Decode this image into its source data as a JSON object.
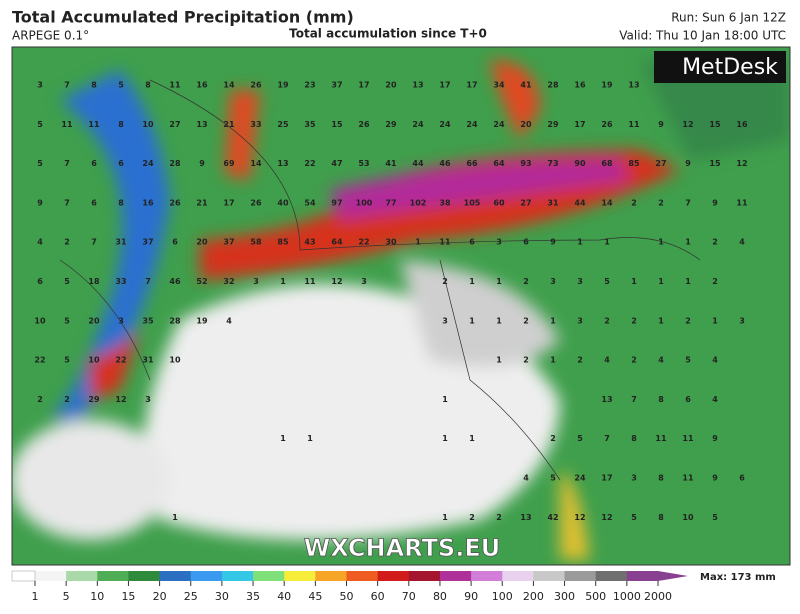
{
  "header": {
    "title": "Total Accumulated Precipitation (mm)",
    "model": "ARPEGE 0.1°",
    "subtitle": "Total accumulation since T+0",
    "run": "Run: Sun 6 Jan 12Z",
    "valid": "Valid: Thu 10 Jan 18:00 UTC"
  },
  "logo": "MetDesk",
  "watermark": "WXCHARTS.EU",
  "map_labels": [
    [
      3,
      7,
      8,
      5,
      8,
      11,
      16,
      14,
      26,
      19,
      23,
      37,
      17,
      20,
      13,
      17,
      17,
      34,
      41,
      28,
      16,
      19,
      13,
      null,
      null,
      null,
      null
    ],
    [
      5,
      11,
      11,
      8,
      10,
      27,
      13,
      21,
      33,
      25,
      35,
      15,
      26,
      29,
      24,
      24,
      24,
      24,
      20,
      29,
      17,
      26,
      11,
      9,
      12,
      15,
      16
    ],
    [
      5,
      7,
      6,
      6,
      24,
      28,
      9,
      69,
      14,
      13,
      22,
      47,
      53,
      41,
      44,
      46,
      66,
      64,
      93,
      73,
      90,
      68,
      85,
      27,
      9,
      15,
      12
    ],
    [
      9,
      7,
      6,
      8,
      16,
      26,
      21,
      17,
      26,
      40,
      54,
      97,
      100,
      77,
      102,
      38,
      105,
      60,
      27,
      31,
      44,
      14,
      2,
      2,
      7,
      9,
      11
    ],
    [
      4,
      2,
      7,
      31,
      37,
      6,
      20,
      37,
      58,
      85,
      43,
      64,
      22,
      30,
      1,
      11,
      6,
      3,
      6,
      9,
      1,
      1,
      null,
      1,
      1,
      2,
      4
    ],
    [
      6,
      5,
      18,
      33,
      7,
      46,
      52,
      32,
      3,
      1,
      11,
      12,
      3,
      null,
      null,
      2,
      1,
      1,
      2,
      3,
      3,
      5,
      1,
      1,
      1,
      2,
      null
    ],
    [
      10,
      5,
      20,
      3,
      35,
      28,
      19,
      4,
      null,
      null,
      null,
      null,
      null,
      null,
      null,
      3,
      1,
      1,
      2,
      1,
      3,
      2,
      2,
      1,
      2,
      1,
      3
    ],
    [
      22,
      5,
      10,
      22,
      31,
      10,
      null,
      null,
      null,
      null,
      null,
      null,
      null,
      null,
      null,
      null,
      null,
      1,
      2,
      1,
      2,
      4,
      2,
      4,
      5,
      4,
      null
    ],
    [
      2,
      2,
      29,
      12,
      3,
      null,
      null,
      null,
      null,
      null,
      null,
      null,
      null,
      null,
      null,
      1,
      null,
      null,
      null,
      null,
      null,
      13,
      7,
      8,
      6,
      4,
      null
    ],
    [
      null,
      null,
      null,
      null,
      null,
      null,
      null,
      null,
      null,
      1,
      1,
      null,
      null,
      null,
      null,
      1,
      1,
      null,
      null,
      2,
      5,
      7,
      8,
      11,
      11,
      9,
      null
    ],
    [
      null,
      null,
      null,
      null,
      null,
      null,
      null,
      null,
      null,
      null,
      null,
      null,
      null,
      null,
      null,
      null,
      null,
      null,
      4,
      5,
      24,
      17,
      3,
      8,
      11,
      9,
      6
    ],
    [
      null,
      null,
      null,
      null,
      null,
      1,
      null,
      null,
      null,
      null,
      null,
      null,
      null,
      null,
      null,
      1,
      2,
      2,
      13,
      42,
      12,
      12,
      5,
      8,
      10,
      5,
      null
    ]
  ],
  "colorbar": {
    "labels": [
      1,
      5,
      10,
      15,
      20,
      25,
      30,
      35,
      40,
      45,
      50,
      60,
      70,
      80,
      90,
      100,
      200,
      300,
      500,
      1000,
      2000
    ],
    "colors": [
      "#f4f4f4",
      "#a9d9a9",
      "#4fae55",
      "#2f8a3c",
      "#2a6fc0",
      "#3a9af0",
      "#35c8e6",
      "#7fe07a",
      "#f6ec3a",
      "#f7a526",
      "#ee5c1f",
      "#d21c1c",
      "#a3162e",
      "#b0309a",
      "#d27ed8",
      "#e8d0ee",
      "#c8c8c8",
      "#9a9a9a",
      "#6f6f6f",
      "#8a4090"
    ],
    "max": "Max: 173 mm"
  }
}
